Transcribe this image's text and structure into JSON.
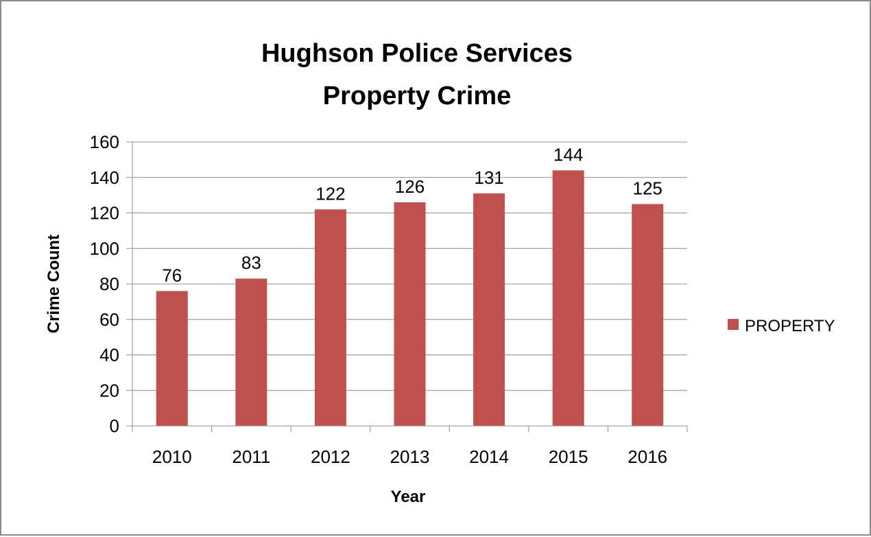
{
  "chart_data": {
    "type": "bar",
    "title": "Hughson Police Services",
    "subtitle": "Property Crime",
    "xlabel": "Year",
    "ylabel": "Crime Count",
    "categories": [
      "2010",
      "2011",
      "2012",
      "2013",
      "2014",
      "2015",
      "2016"
    ],
    "series": [
      {
        "name": "PROPERTY",
        "values": [
          76,
          83,
          122,
          126,
          131,
          144,
          125
        ],
        "color": "#c0504d"
      }
    ],
    "ylim": [
      0,
      160
    ],
    "yticks": [
      "0",
      "20",
      "40",
      "60",
      "80",
      "100",
      "120",
      "140",
      "160"
    ],
    "ytick_values": [
      0,
      20,
      40,
      60,
      80,
      100,
      120,
      140,
      160
    ],
    "grid": true,
    "legend_position": "right",
    "data_labels": true
  }
}
